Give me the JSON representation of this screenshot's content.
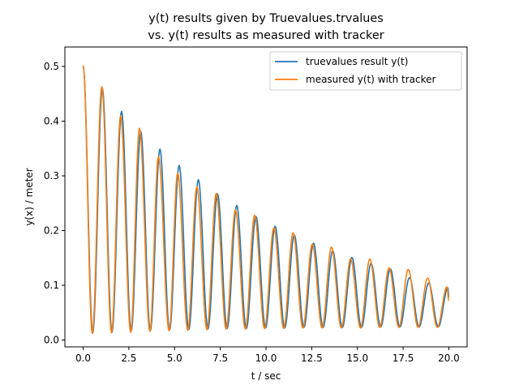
{
  "chart_data": {
    "type": "line",
    "title_lines": [
      "y(t) results given by Truevalues.trvalues",
      "vs. y(t) results as measured with tracker"
    ],
    "xlabel": "t / sec",
    "ylabel": "y(x) / meter",
    "xlim": [
      -1.0,
      21.0
    ],
    "ylim": [
      -0.0125,
      0.5355
    ],
    "xticks": [
      0.0,
      2.5,
      5.0,
      7.5,
      10.0,
      12.5,
      15.0,
      17.5,
      20.0
    ],
    "xtick_labels": [
      "0.0",
      "2.5",
      "5.0",
      "7.5",
      "10.0",
      "12.5",
      "15.0",
      "17.5",
      "20.0"
    ],
    "yticks": [
      0.0,
      0.1,
      0.2,
      0.3,
      0.4,
      0.5
    ],
    "ytick_labels": [
      "0.0",
      "0.1",
      "0.2",
      "0.3",
      "0.4",
      "0.5"
    ],
    "grid": false,
    "legend_placement": "upper-right",
    "series": [
      {
        "name": "truevalues result y(t)",
        "color": "#1f77b4",
        "peak_times": [
          0.0,
          1.05,
          2.1,
          3.15,
          4.2,
          5.25,
          6.3,
          7.35,
          8.4,
          9.45,
          10.5,
          11.55,
          12.6,
          13.65,
          14.7,
          15.75,
          16.8,
          17.85,
          18.9,
          19.95
        ],
        "peak_values": [
          0.5,
          0.46,
          0.418,
          0.381,
          0.349,
          0.319,
          0.293,
          0.267,
          0.246,
          0.226,
          0.208,
          0.192,
          0.177,
          0.163,
          0.151,
          0.14,
          0.13,
          0.114,
          0.104,
          0.095
        ],
        "trough_times": [
          0.525,
          1.575,
          2.625,
          3.675,
          4.725,
          5.775,
          6.825,
          7.875,
          8.925,
          9.975,
          11.025,
          12.075,
          13.125,
          14.175,
          15.225,
          16.275,
          17.325,
          18.375,
          19.425
        ],
        "trough_values": [
          0.013,
          0.014,
          0.016,
          0.017,
          0.018,
          0.019,
          0.02,
          0.021,
          0.021,
          0.022,
          0.022,
          0.023,
          0.023,
          0.023,
          0.023,
          0.024,
          0.024,
          0.024,
          0.024
        ],
        "end_point": [
          20.0,
          0.078
        ]
      },
      {
        "name": "measured y(t) with tracker",
        "color": "#ff7f0e",
        "peak_times": [
          0.0,
          1.02,
          2.05,
          3.08,
          4.12,
          5.17,
          6.22,
          7.28,
          8.33,
          9.38,
          10.43,
          11.48,
          12.53,
          13.58,
          14.63,
          15.68,
          16.73,
          17.78,
          18.84,
          19.9
        ],
        "peak_values": [
          0.502,
          0.463,
          0.41,
          0.387,
          0.335,
          0.305,
          0.28,
          0.268,
          0.238,
          0.228,
          0.205,
          0.196,
          0.175,
          0.17,
          0.148,
          0.148,
          0.132,
          0.129,
          0.113,
          0.097
        ],
        "trough_times": [
          0.5,
          1.55,
          2.6,
          3.65,
          4.7,
          5.72,
          6.77,
          7.82,
          8.87,
          9.92,
          10.97,
          12.02,
          13.07,
          14.12,
          15.17,
          16.22,
          17.27,
          18.32,
          19.37
        ],
        "trough_values": [
          0.012,
          0.013,
          0.014,
          0.016,
          0.017,
          0.018,
          0.019,
          0.02,
          0.02,
          0.021,
          0.021,
          0.022,
          0.022,
          0.022,
          0.022,
          0.023,
          0.023,
          0.023,
          0.023
        ],
        "end_point": [
          20.0,
          0.072
        ]
      }
    ]
  }
}
